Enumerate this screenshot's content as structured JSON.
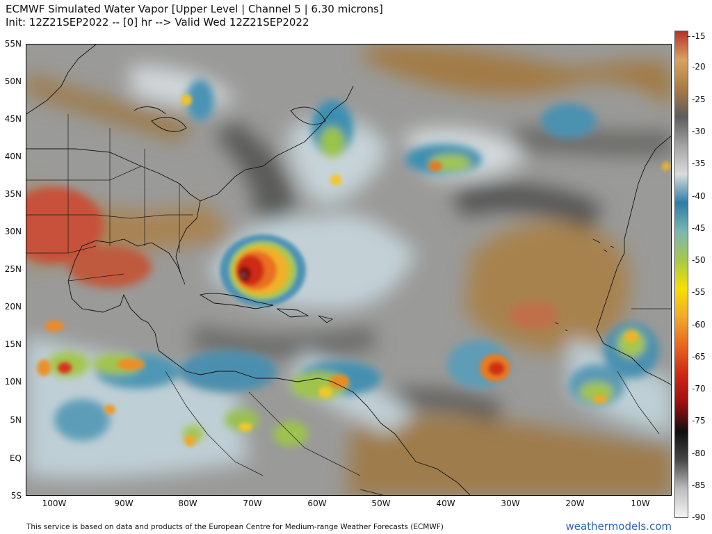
{
  "title": {
    "line1": "ECMWF Simulated Water Vapor [Upper Level | Channel 5 | 6.30 microns]",
    "line2": "Init: 12Z21SEP2022 -- [0] hr --> Valid Wed 12Z21SEP2022"
  },
  "lat_labels": [
    "55N",
    "50N",
    "45N",
    "40N",
    "35N",
    "30N",
    "25N",
    "20N",
    "15N",
    "10N",
    "5N",
    "EQ",
    "5S"
  ],
  "lon_labels": [
    "100W",
    "90W",
    "80W",
    "70W",
    "60W",
    "50W",
    "40W",
    "30W",
    "20W",
    "10W"
  ],
  "colorbar": {
    "labels": [
      "-15",
      "-20",
      "-25",
      "-30",
      "-35",
      "-40",
      "-45",
      "-50",
      "-55",
      "-60",
      "-65",
      "-70",
      "-75",
      "-80",
      "-85",
      "-90"
    ],
    "colors": [
      "#b7322a",
      "#d9a35f",
      "#a97b44",
      "#5c5c5c",
      "#a3a3a3",
      "#dcdcdc",
      "#2b7ea9",
      "#7ab7b2",
      "#a6c94a",
      "#f6e100",
      "#f1a92a",
      "#e9661e",
      "#cf2713",
      "#9d0f0f",
      "#0f0f0f",
      "#474747",
      "#bdbdbd",
      "#f5f5f5"
    ]
  },
  "footer": "This service is based on data and products of the European Centre for Medium-range Weather Forecasts (ECMWF)",
  "brand": "weathermodels.com"
}
